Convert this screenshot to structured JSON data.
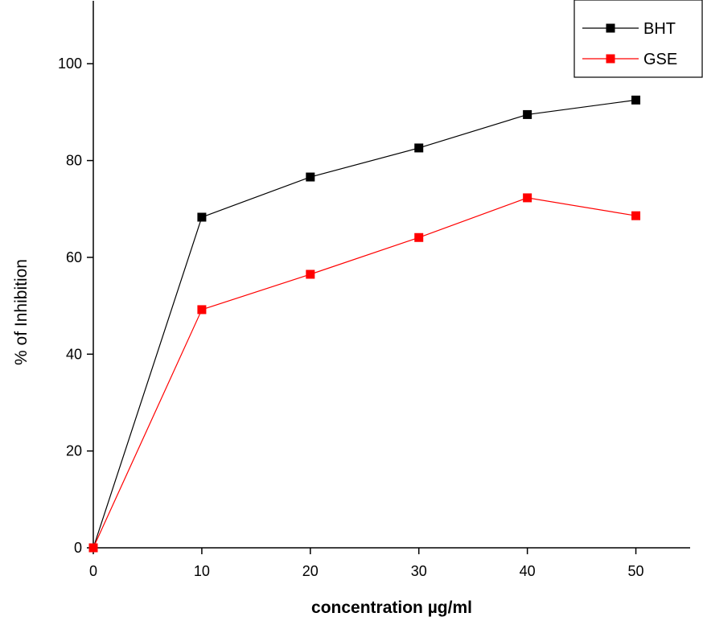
{
  "chart_data": {
    "type": "line",
    "x_label": "concentration µg/ml",
    "y_label": "% of Inhibition",
    "x": [
      0,
      10,
      20,
      30,
      40,
      50
    ],
    "series": [
      {
        "name": "BHT",
        "color": "#000000",
        "values": [
          0,
          68.3,
          76.6,
          82.6,
          89.5,
          92.5
        ]
      },
      {
        "name": "GSE",
        "color": "#ff0000",
        "values": [
          0,
          49.2,
          56.5,
          64.1,
          72.3,
          68.6
        ]
      }
    ],
    "xlim": [
      0,
      55
    ],
    "xticks": [
      0,
      10,
      20,
      30,
      40,
      50
    ],
    "ylim": [
      0,
      113
    ],
    "yticks": [
      0,
      20,
      40,
      60,
      80,
      100
    ],
    "legend": "top-right"
  }
}
